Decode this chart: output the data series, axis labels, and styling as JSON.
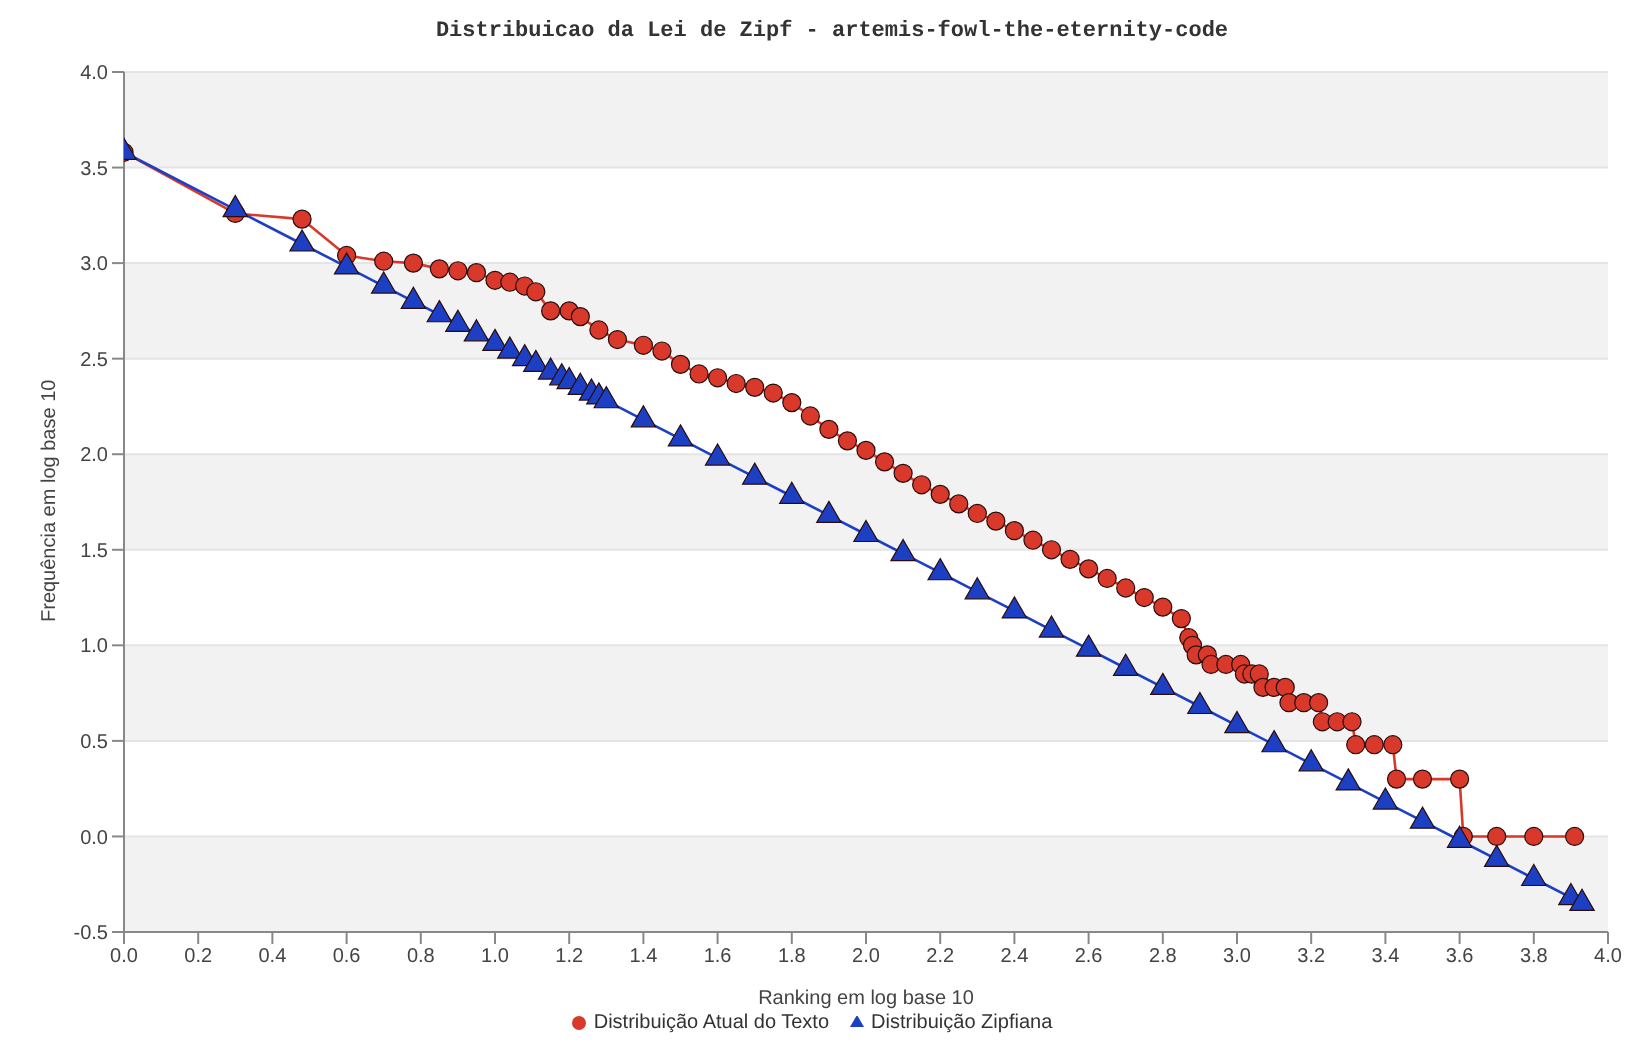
{
  "chart_data": {
    "type": "line",
    "title": "Distribuicao da Lei de Zipf - artemis-fowl-the-eternity-code",
    "xlabel": "Ranking em log base 10",
    "ylabel": "Frequência em log base 10",
    "xlim": [
      0,
      4
    ],
    "xticks": [
      {
        "value": 0,
        "label": "0.0"
      },
      0.2,
      0.4,
      0.6,
      0.8,
      {
        "value": 1,
        "label": "1.0"
      },
      1.2,
      1.4,
      1.6,
      1.8,
      {
        "value": 2,
        "label": "2.0"
      },
      2.2,
      2.4,
      2.6,
      2.8,
      {
        "value": 3,
        "label": "3.0"
      },
      3.2,
      3.4,
      3.6,
      3.8,
      {
        "value": 4,
        "label": "4.0"
      }
    ],
    "ylim": [
      -0.5,
      4
    ],
    "yticks": [
      -0.5,
      {
        "value": 0,
        "label": "0.0"
      },
      0.5,
      {
        "value": 1,
        "label": "1.0"
      },
      1.5,
      {
        "value": 2,
        "label": "2.0"
      },
      2.5,
      {
        "value": 3,
        "label": "3.0"
      },
      3.5,
      {
        "value": 4,
        "label": "4.0"
      }
    ],
    "grid": "y",
    "legend": "bottom",
    "line_style": "solid",
    "series": [
      {
        "name": "Distribuição Atual do Texto",
        "marker": "circle",
        "color": "#d9392a",
        "x": [
          0,
          0.3,
          0.48,
          0.6,
          0.7,
          0.78,
          0.85,
          0.9,
          0.95,
          1.0,
          1.04,
          1.08,
          1.11,
          1.15,
          1.2,
          1.23,
          1.28,
          1.33,
          1.4,
          1.45,
          1.5,
          1.55,
          1.6,
          1.65,
          1.7,
          1.75,
          1.8,
          1.85,
          1.9,
          1.95,
          2.0,
          2.05,
          2.1,
          2.15,
          2.2,
          2.25,
          2.3,
          2.35,
          2.4,
          2.45,
          2.5,
          2.55,
          2.6,
          2.65,
          2.7,
          2.75,
          2.8,
          2.85,
          2.87,
          2.88,
          2.89,
          2.92,
          2.93,
          2.97,
          3.01,
          3.02,
          3.04,
          3.06,
          3.07,
          3.1,
          3.13,
          3.14,
          3.18,
          3.22,
          3.23,
          3.27,
          3.31,
          3.32,
          3.37,
          3.42,
          3.43,
          3.5,
          3.6,
          3.61,
          3.7,
          3.8,
          3.91
        ],
        "values": [
          3.58,
          3.26,
          3.23,
          3.04,
          3.01,
          3.0,
          2.97,
          2.96,
          2.95,
          2.91,
          2.9,
          2.88,
          2.85,
          2.75,
          2.75,
          2.72,
          2.65,
          2.6,
          2.57,
          2.54,
          2.47,
          2.42,
          2.4,
          2.37,
          2.35,
          2.32,
          2.27,
          2.2,
          2.13,
          2.07,
          2.02,
          1.96,
          1.9,
          1.84,
          1.79,
          1.74,
          1.69,
          1.65,
          1.6,
          1.55,
          1.5,
          1.45,
          1.4,
          1.35,
          1.3,
          1.25,
          1.2,
          1.14,
          1.04,
          1.0,
          0.95,
          0.95,
          0.9,
          0.9,
          0.9,
          0.85,
          0.85,
          0.85,
          0.78,
          0.78,
          0.78,
          0.7,
          0.7,
          0.7,
          0.6,
          0.6,
          0.6,
          0.48,
          0.48,
          0.48,
          0.3,
          0.3,
          0.3,
          0,
          0,
          0,
          0
        ]
      },
      {
        "name": "Distribuição Zipfiana",
        "marker": "triangle",
        "color": "#1c3fc4",
        "x": [
          0,
          0.3,
          0.48,
          0.6,
          0.7,
          0.78,
          0.85,
          0.9,
          0.95,
          1.0,
          1.04,
          1.08,
          1.11,
          1.15,
          1.18,
          1.2,
          1.23,
          1.26,
          1.28,
          1.3,
          1.4,
          1.5,
          1.6,
          1.7,
          1.8,
          1.9,
          2.0,
          2.1,
          2.2,
          2.3,
          2.4,
          2.5,
          2.6,
          2.7,
          2.8,
          2.9,
          3.0,
          3.1,
          3.2,
          3.3,
          3.4,
          3.5,
          3.6,
          3.7,
          3.8,
          3.9,
          3.93
        ],
        "values": [
          3.58,
          3.28,
          3.1,
          2.98,
          2.88,
          2.8,
          2.73,
          2.68,
          2.63,
          2.58,
          2.54,
          2.5,
          2.47,
          2.43,
          2.4,
          2.38,
          2.35,
          2.32,
          2.3,
          2.28,
          2.18,
          2.08,
          1.98,
          1.88,
          1.78,
          1.68,
          1.58,
          1.48,
          1.38,
          1.28,
          1.18,
          1.08,
          0.98,
          0.88,
          0.78,
          0.68,
          0.58,
          0.48,
          0.38,
          0.28,
          0.18,
          0.08,
          -0.02,
          -0.12,
          -0.22,
          -0.32,
          -0.35
        ]
      }
    ]
  }
}
